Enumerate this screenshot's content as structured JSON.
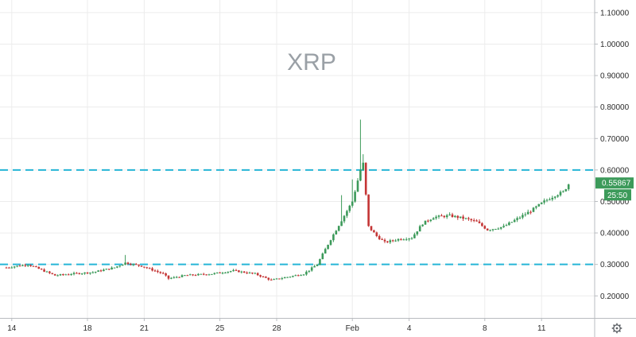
{
  "chart_data": {
    "type": "candlestick",
    "title": "XRP",
    "xlabel": "",
    "ylabel": "",
    "ylim": [
      0.13,
      1.14
    ],
    "grid": true,
    "x_tick_labels": [
      {
        "label": "14",
        "index": 2
      },
      {
        "label": "18",
        "index": 30
      },
      {
        "label": "21",
        "index": 51
      },
      {
        "label": "25",
        "index": 79
      },
      {
        "label": "28",
        "index": 100
      },
      {
        "label": "Feb",
        "index": 128
      },
      {
        "label": "4",
        "index": 149
      },
      {
        "label": "8",
        "index": 177
      },
      {
        "label": "11",
        "index": 198
      }
    ],
    "y_ticks": [
      {
        "value": 0.2,
        "label": "0.20000"
      },
      {
        "value": 0.3,
        "label": "0.30000"
      },
      {
        "value": 0.4,
        "label": "0.40000"
      },
      {
        "value": 0.5,
        "label": "0.50000"
      },
      {
        "value": 0.6,
        "label": "0.60000"
      },
      {
        "value": 0.7,
        "label": "0.70000"
      },
      {
        "value": 0.8,
        "label": "0.80000"
      },
      {
        "value": 0.9,
        "label": "0.90000"
      },
      {
        "value": 1.0,
        "label": "1.00000"
      },
      {
        "value": 1.1,
        "label": "1.10000"
      }
    ],
    "horizontal_lines": [
      {
        "value": 0.6,
        "style": "dashed",
        "color": "#26b5d6"
      },
      {
        "value": 0.3,
        "style": "dashed",
        "color": "#26b5d6"
      }
    ],
    "current_price": {
      "value": 0.55867,
      "label": "0.55867",
      "countdown": "25:50",
      "color": "#3c9a5a"
    },
    "up_color": "#3c9a5a",
    "down_color": "#c43535",
    "close_anchors": [
      [
        0,
        0.29
      ],
      [
        8,
        0.3
      ],
      [
        18,
        0.265
      ],
      [
        24,
        0.27
      ],
      [
        32,
        0.275
      ],
      [
        40,
        0.29
      ],
      [
        44,
        0.305
      ],
      [
        50,
        0.295
      ],
      [
        58,
        0.27
      ],
      [
        60,
        0.255
      ],
      [
        66,
        0.265
      ],
      [
        76,
        0.27
      ],
      [
        84,
        0.28
      ],
      [
        92,
        0.27
      ],
      [
        98,
        0.25
      ],
      [
        104,
        0.26
      ],
      [
        110,
        0.27
      ],
      [
        115,
        0.3
      ],
      [
        120,
        0.38
      ],
      [
        124,
        0.44
      ],
      [
        128,
        0.5
      ],
      [
        131,
        0.6
      ],
      [
        132,
        0.62
      ],
      [
        134,
        0.42
      ],
      [
        137,
        0.39
      ],
      [
        140,
        0.37
      ],
      [
        145,
        0.38
      ],
      [
        150,
        0.385
      ],
      [
        154,
        0.43
      ],
      [
        158,
        0.45
      ],
      [
        164,
        0.455
      ],
      [
        170,
        0.445
      ],
      [
        174,
        0.435
      ],
      [
        178,
        0.41
      ],
      [
        184,
        0.42
      ],
      [
        190,
        0.45
      ],
      [
        194,
        0.47
      ],
      [
        199,
        0.5
      ],
      [
        203,
        0.52
      ],
      [
        206,
        0.53
      ],
      [
        208,
        0.555
      ]
    ]
  }
}
